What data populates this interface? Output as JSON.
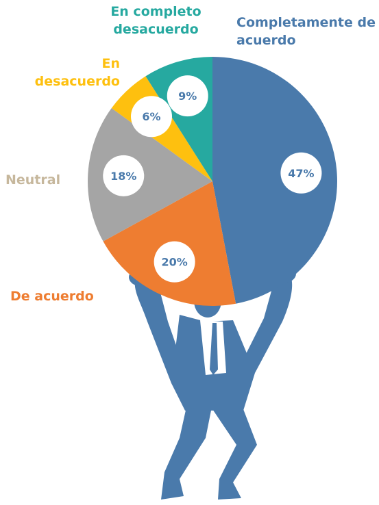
{
  "chart_data": {
    "type": "pie",
    "categories": [
      "Completamente de acuerdo",
      "De acuerdo",
      "Neutral",
      "En desacuerdo",
      "En completo desacuerdo"
    ],
    "values": [
      47,
      20,
      18,
      6,
      9
    ],
    "value_labels": [
      "47%",
      "20%",
      "18%",
      "6%",
      "9%"
    ],
    "colors": [
      "#4a7aab",
      "#ee7d31",
      "#a5a5a5",
      "#fec00f",
      "#26a9a0"
    ],
    "label_colors": [
      "#4a7aab",
      "#ee7d31",
      "#c6b79c",
      "#fec00f",
      "#26a9a0"
    ],
    "start": "top",
    "direction": "clockwise"
  }
}
